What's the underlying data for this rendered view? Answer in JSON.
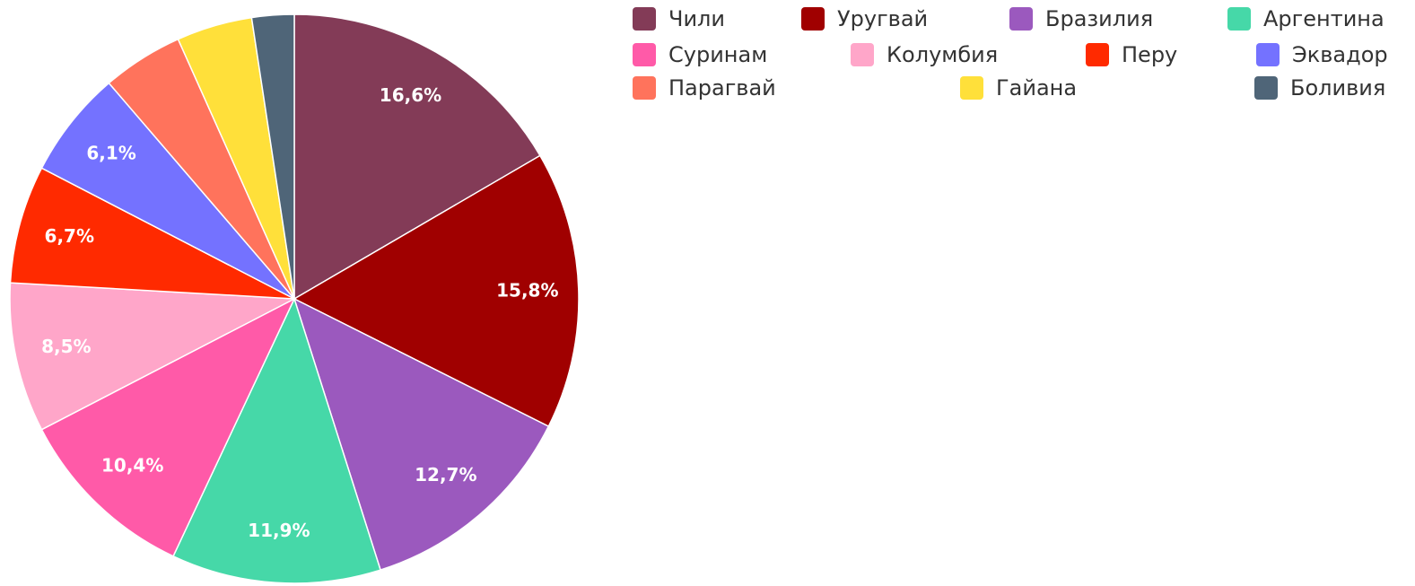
{
  "chart_data": {
    "type": "pie",
    "categories": [
      "Чили",
      "Уругвай",
      "Бразилия",
      "Аргентина",
      "Суринам",
      "Колумбия",
      "Перу",
      "Эквадор",
      "Парагвай",
      "Гайана",
      "Боливия"
    ],
    "values": [
      16.6,
      15.8,
      12.7,
      11.9,
      10.4,
      8.5,
      6.7,
      6.1,
      4.6,
      4.3,
      2.4
    ],
    "value_labels": [
      "16,6%",
      "15,8%",
      "12,7%",
      "11,9%",
      "10,4%",
      "8,5%",
      "6,7%",
      "6,1%",
      null,
      null,
      null
    ],
    "colors": [
      "#833b57",
      "#a00000",
      "#9b59be",
      "#46d8a8",
      "#ff5aa8",
      "#ffa6c9",
      "#ff2a00",
      "#7472ff",
      "#ff735c",
      "#ffe03a",
      "#4f6578"
    ],
    "legend": "top-right"
  }
}
